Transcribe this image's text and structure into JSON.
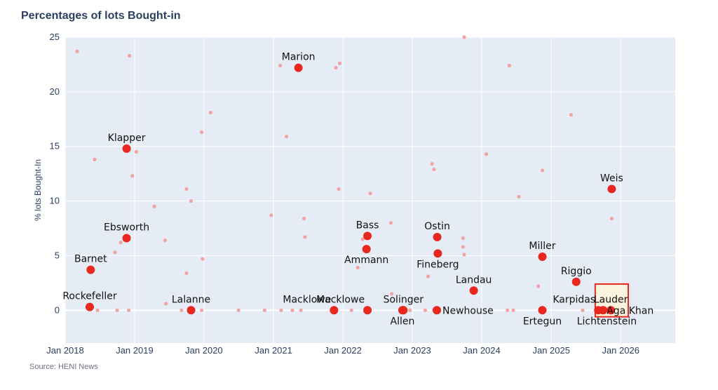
{
  "title": "Percentages of lots Bought-in",
  "source": "Source: HENI News",
  "colors": {
    "plot_bg": "#e5ecf6",
    "grid": "#ffffff",
    "highlight": "#e8281e",
    "background_point": "#f2a3a3",
    "box_fill": "#fbf3dd",
    "box_stroke": "#e8281e"
  },
  "chart_data": {
    "type": "scatter",
    "title": "Percentages of lots Bought-in",
    "xlabel": "",
    "ylabel": "% lots Bought-In",
    "xlim": [
      "2018-01-01",
      "2026-10-15"
    ],
    "ylim": [
      -3,
      25
    ],
    "x_ticks": [
      "2018-01-01",
      "2019-01-01",
      "2020-01-01",
      "2021-01-01",
      "2022-01-01",
      "2023-01-01",
      "2024-01-01",
      "2025-01-01",
      "2026-01-01"
    ],
    "x_tick_labels": [
      "Jan 2018",
      "Jan 2019",
      "Jan 2020",
      "Jan 2021",
      "Jan 2022",
      "Jan 2023",
      "Jan 2024",
      "Jan 2025",
      "Jan 2026"
    ],
    "y_ticks": [
      0,
      5,
      10,
      15,
      20,
      25
    ],
    "grid": true,
    "highlight_box": {
      "x": [
        "2025-08-20",
        "2026-02-10"
      ],
      "y": [
        -0.6,
        2.4
      ]
    },
    "series": [
      {
        "role": "highlighted",
        "points": [
          {
            "date": "2018-05-10",
            "value": 0.3,
            "label": "Rockefeller",
            "pos": "above"
          },
          {
            "date": "2018-05-15",
            "value": 3.7,
            "label": "Barnet",
            "pos": "above"
          },
          {
            "date": "2018-11-20",
            "value": 14.8,
            "label": "Klapper",
            "pos": "above"
          },
          {
            "date": "2018-11-20",
            "value": 6.6,
            "label": "Ebsworth",
            "pos": "above"
          },
          {
            "date": "2019-10-25",
            "value": 0.0,
            "label": "Lalanne",
            "pos": "above"
          },
          {
            "date": "2021-05-12",
            "value": 22.2,
            "label": "Marion",
            "pos": "above"
          },
          {
            "date": "2021-11-15",
            "value": 0.0,
            "label": "Macklowe",
            "pos": "above-left"
          },
          {
            "date": "2022-05-10",
            "value": 6.8,
            "label": "Bass",
            "pos": "above"
          },
          {
            "date": "2022-05-05",
            "value": 5.6,
            "label": "Ammann",
            "pos": "below"
          },
          {
            "date": "2022-05-10",
            "value": 0.0,
            "label": "Macklowe",
            "pos": "above-left"
          },
          {
            "date": "2022-11-15",
            "value": 0.0,
            "label": "Solinger",
            "pos": "above"
          },
          {
            "date": "2022-11-10",
            "value": 0.0,
            "label": "Allen",
            "pos": "below"
          },
          {
            "date": "2023-05-12",
            "value": 6.7,
            "label": "Ostin",
            "pos": "above"
          },
          {
            "date": "2023-05-15",
            "value": 5.2,
            "label": "Fineberg",
            "pos": "below"
          },
          {
            "date": "2023-05-10",
            "value": 0.0,
            "label": "Newhouse",
            "pos": "right"
          },
          {
            "date": "2023-11-20",
            "value": 1.8,
            "label": "Landau",
            "pos": "above"
          },
          {
            "date": "2024-11-15",
            "value": 4.9,
            "label": "Miller",
            "pos": "above"
          },
          {
            "date": "2024-11-15",
            "value": 0.0,
            "label": "Ertegun",
            "pos": "below"
          },
          {
            "date": "2025-05-12",
            "value": 2.6,
            "label": "Riggio",
            "pos": "above"
          },
          {
            "date": "2025-11-15",
            "value": 11.1,
            "label": "Weis",
            "pos": "above"
          },
          {
            "date": "2025-09-05",
            "value": 0.0,
            "label": "",
            "pos": "none"
          },
          {
            "date": "2025-10-01",
            "value": 0.0,
            "label": "",
            "pos": "none"
          },
          {
            "date": "2025-11-10",
            "value": 0.0,
            "label": "",
            "pos": "none"
          }
        ],
        "free_labels": [
          {
            "text": "Karpidas",
            "date": "2025-05-01",
            "value": 0.0
          },
          {
            "text": "Lauder",
            "date": "2025-11-10",
            "value": 0.0
          },
          {
            "text": "Aga Khan",
            "date": "2026-02-20",
            "value": 0.0
          },
          {
            "text": "Lichtenstein",
            "date": "2025-10-20",
            "value": 0.0
          }
        ]
      },
      {
        "role": "background",
        "points": [
          {
            "date": "2018-03-05",
            "value": 23.7
          },
          {
            "date": "2018-06-05",
            "value": 13.8
          },
          {
            "date": "2018-06-20",
            "value": 0.0
          },
          {
            "date": "2018-09-20",
            "value": 5.3
          },
          {
            "date": "2018-10-20",
            "value": 6.2
          },
          {
            "date": "2018-10-01",
            "value": 0.0
          },
          {
            "date": "2018-12-01",
            "value": 0.0
          },
          {
            "date": "2018-12-05",
            "value": 23.3
          },
          {
            "date": "2018-12-20",
            "value": 12.3
          },
          {
            "date": "2019-01-10",
            "value": 14.5
          },
          {
            "date": "2019-04-15",
            "value": 9.5
          },
          {
            "date": "2019-06-10",
            "value": 6.4
          },
          {
            "date": "2019-06-15",
            "value": 0.6
          },
          {
            "date": "2019-09-05",
            "value": 0.0
          },
          {
            "date": "2019-10-01",
            "value": 11.1
          },
          {
            "date": "2019-10-01",
            "value": 3.4
          },
          {
            "date": "2019-10-25",
            "value": 10.0
          },
          {
            "date": "2019-12-20",
            "value": 16.3
          },
          {
            "date": "2019-12-25",
            "value": 4.7
          },
          {
            "date": "2019-12-20",
            "value": 0.0
          },
          {
            "date": "2020-02-05",
            "value": 18.1
          },
          {
            "date": "2020-07-01",
            "value": 0.0
          },
          {
            "date": "2020-11-15",
            "value": 0.0
          },
          {
            "date": "2020-12-20",
            "value": 8.7
          },
          {
            "date": "2021-02-05",
            "value": 22.4
          },
          {
            "date": "2021-02-10",
            "value": 0.0
          },
          {
            "date": "2021-03-10",
            "value": 15.9
          },
          {
            "date": "2021-04-10",
            "value": 0.0
          },
          {
            "date": "2021-06-10",
            "value": 8.4
          },
          {
            "date": "2021-06-15",
            "value": 6.7
          },
          {
            "date": "2021-05-25",
            "value": 0.0
          },
          {
            "date": "2021-11-25",
            "value": 22.2
          },
          {
            "date": "2021-12-15",
            "value": 22.6
          },
          {
            "date": "2021-12-10",
            "value": 11.1
          },
          {
            "date": "2022-02-15",
            "value": 0.0
          },
          {
            "date": "2022-03-20",
            "value": 3.9
          },
          {
            "date": "2022-04-15",
            "value": 6.5
          },
          {
            "date": "2022-05-25",
            "value": 10.7
          },
          {
            "date": "2022-09-10",
            "value": 8.0
          },
          {
            "date": "2022-09-15",
            "value": 1.5
          },
          {
            "date": "2022-12-20",
            "value": 0.0
          },
          {
            "date": "2023-03-25",
            "value": 3.1
          },
          {
            "date": "2023-03-10",
            "value": 0.0
          },
          {
            "date": "2023-04-15",
            "value": 13.4
          },
          {
            "date": "2023-04-25",
            "value": 12.9
          },
          {
            "date": "2023-04-25",
            "value": 0.0
          },
          {
            "date": "2023-09-25",
            "value": 6.6
          },
          {
            "date": "2023-10-01",
            "value": 25.0
          },
          {
            "date": "2023-09-25",
            "value": 5.8
          },
          {
            "date": "2023-10-01",
            "value": 5.1
          },
          {
            "date": "2024-01-25",
            "value": 14.3
          },
          {
            "date": "2024-05-25",
            "value": 22.4
          },
          {
            "date": "2024-05-15",
            "value": 0.0
          },
          {
            "date": "2024-06-15",
            "value": 0.0
          },
          {
            "date": "2024-07-15",
            "value": 10.4
          },
          {
            "date": "2024-10-25",
            "value": 2.2
          },
          {
            "date": "2024-11-15",
            "value": 12.8
          },
          {
            "date": "2024-11-20",
            "value": 0.0
          },
          {
            "date": "2025-04-15",
            "value": 17.9
          },
          {
            "date": "2025-06-15",
            "value": 0.0
          },
          {
            "date": "2025-11-15",
            "value": 8.4
          }
        ]
      }
    ]
  }
}
